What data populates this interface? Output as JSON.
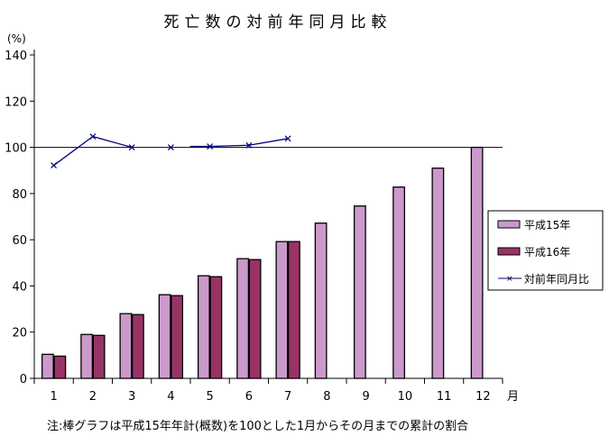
{
  "chart_data": {
    "type": "bar",
    "title": "死亡数の対前年同月比較",
    "ylabel": "(%)",
    "xunit": "月",
    "note": "注:棒グラフは平成15年年計(概数)を100とした1月からその月までの累計の割合",
    "categories": [
      "1",
      "2",
      "3",
      "4",
      "5",
      "6",
      "7",
      "8",
      "9",
      "10",
      "11",
      "12"
    ],
    "ylim": [
      0,
      140
    ],
    "yticks": [
      "0",
      "20",
      "40",
      "60",
      "80",
      "100",
      "120",
      "140"
    ],
    "reference_line": 100,
    "grid": false,
    "legend_placement": "right",
    "series": [
      {
        "name": "平成15年",
        "kind": "bar",
        "color": "#cc99cc",
        "values": [
          10.4,
          19.0,
          28.0,
          36.2,
          44.4,
          51.8,
          59.2,
          67.2,
          74.6,
          82.8,
          91.0,
          100.0
        ]
      },
      {
        "name": "平成16年",
        "kind": "bar",
        "color": "#993366",
        "values": [
          9.6,
          18.6,
          27.6,
          35.8,
          44.0,
          51.4,
          59.2,
          null,
          null,
          null,
          null,
          null
        ]
      },
      {
        "name": "対前年同月比",
        "kind": "line",
        "color": "#000080",
        "marker": "x",
        "values": [
          92.2,
          104.7,
          100.0,
          100.0,
          100.4,
          100.9,
          103.8,
          null,
          null,
          null,
          null,
          null
        ]
      }
    ]
  }
}
